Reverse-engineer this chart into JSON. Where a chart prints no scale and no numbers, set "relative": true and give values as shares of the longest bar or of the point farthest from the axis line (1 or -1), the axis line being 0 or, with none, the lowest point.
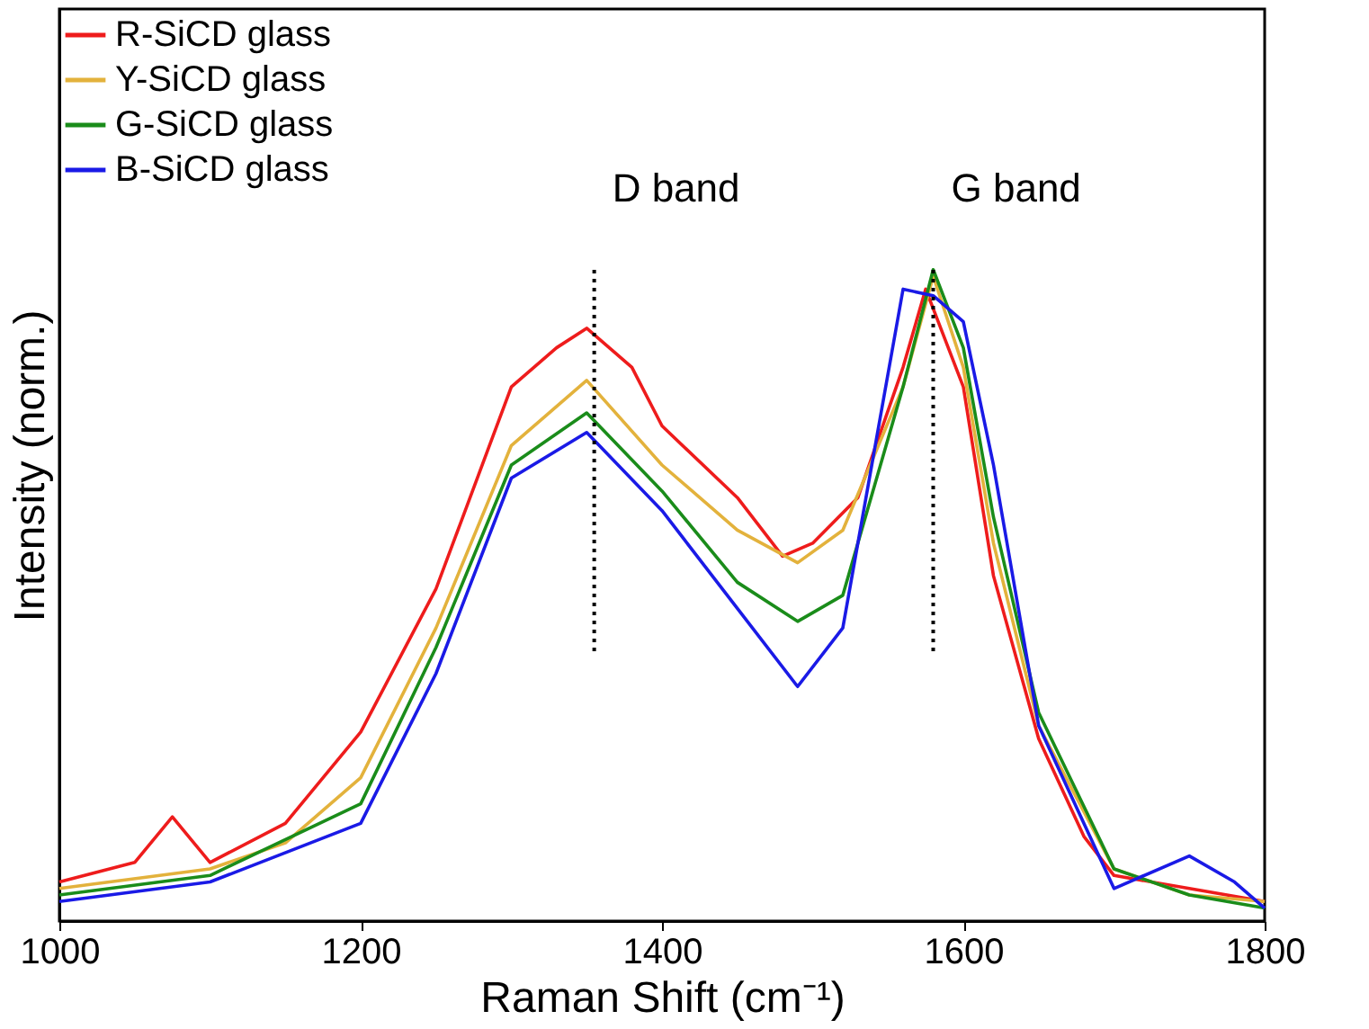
{
  "chart_data": {
    "type": "line",
    "relative": true,
    "xlabel": "Raman Shift (cm⁻¹)",
    "ylabel": "Intensity (norm.)",
    "xlim": [
      1000,
      1800
    ],
    "xticks": [
      1000,
      1200,
      1400,
      1600,
      1800
    ],
    "legend": "top left",
    "grid": false,
    "line_style": "solid",
    "marker": "none",
    "series": [
      {
        "name": "R-SiCD glass",
        "color": "#ee1c1c",
        "x": [
          1000,
          1050,
          1075,
          1100,
          1150,
          1200,
          1250,
          1300,
          1330,
          1350,
          1380,
          1400,
          1450,
          1480,
          1500,
          1530,
          1560,
          1575,
          1600,
          1620,
          1650,
          1680,
          1700,
          1750,
          1800
        ],
        "values": [
          0.06,
          0.09,
          0.16,
          0.09,
          0.15,
          0.29,
          0.51,
          0.82,
          0.88,
          0.91,
          0.85,
          0.76,
          0.65,
          0.56,
          0.58,
          0.65,
          0.85,
          0.97,
          0.82,
          0.53,
          0.28,
          0.13,
          0.07,
          0.05,
          0.03
        ]
      },
      {
        "name": "Y-SiCD glass",
        "color": "#e3b23c",
        "x": [
          1000,
          1100,
          1150,
          1200,
          1250,
          1300,
          1350,
          1400,
          1450,
          1490,
          1520,
          1560,
          1580,
          1600,
          1620,
          1650,
          1700,
          1750,
          1800
        ],
        "values": [
          0.05,
          0.08,
          0.12,
          0.22,
          0.45,
          0.73,
          0.83,
          0.7,
          0.6,
          0.55,
          0.6,
          0.82,
          0.99,
          0.85,
          0.58,
          0.3,
          0.08,
          0.04,
          0.03
        ]
      },
      {
        "name": "G-SiCD glass",
        "color": "#1a8c1a",
        "x": [
          1000,
          1100,
          1200,
          1250,
          1300,
          1350,
          1400,
          1450,
          1490,
          1520,
          1560,
          1580,
          1600,
          1620,
          1650,
          1700,
          1750,
          1800
        ],
        "values": [
          0.04,
          0.07,
          0.18,
          0.42,
          0.7,
          0.78,
          0.66,
          0.52,
          0.46,
          0.5,
          0.82,
          1.0,
          0.88,
          0.62,
          0.32,
          0.08,
          0.04,
          0.02
        ]
      },
      {
        "name": "B-SiCD glass",
        "color": "#1a1ae6",
        "x": [
          1000,
          1100,
          1200,
          1250,
          1300,
          1350,
          1400,
          1450,
          1490,
          1520,
          1560,
          1580,
          1600,
          1620,
          1650,
          1700,
          1750,
          1780,
          1800
        ],
        "values": [
          0.03,
          0.06,
          0.15,
          0.38,
          0.68,
          0.75,
          0.63,
          0.48,
          0.36,
          0.45,
          0.97,
          0.96,
          0.92,
          0.7,
          0.3,
          0.05,
          0.1,
          0.06,
          0.02
        ]
      }
    ],
    "ref_lines": [
      {
        "axis": "x",
        "value": 1355,
        "label": "D band",
        "line_style": "dotted",
        "color": "#000000"
      },
      {
        "axis": "x",
        "value": 1580,
        "label": "G band",
        "line_style": "dotted",
        "color": "#000000"
      }
    ]
  }
}
